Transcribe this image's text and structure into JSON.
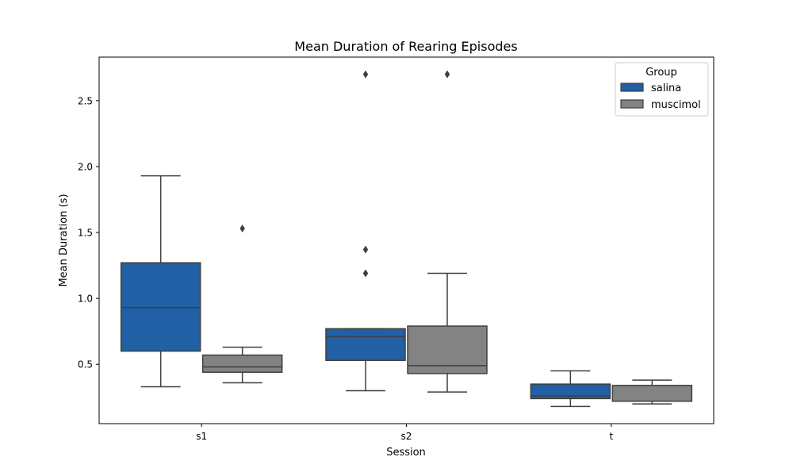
{
  "chart_data": {
    "type": "box",
    "title": "Mean Duration of Rearing Episodes",
    "xlabel": "Session",
    "ylabel": "Mean Duration (s)",
    "categories": [
      "s1",
      "s2",
      "t"
    ],
    "ylim": [
      0.05,
      2.83
    ],
    "yticks": [
      0.5,
      1.0,
      1.5,
      2.0,
      2.5
    ],
    "ytick_labels": [
      "0.5",
      "1.0",
      "1.5",
      "2.0",
      "2.5"
    ],
    "grid": false,
    "legend": {
      "title": "Group",
      "position": "top-right"
    },
    "series": [
      {
        "name": "salina",
        "color": "#2160a4",
        "boxes": [
          {
            "category": "s1",
            "whisker_low": 0.33,
            "q1": 0.6,
            "median": 0.93,
            "q3": 1.27,
            "whisker_high": 1.93,
            "outliers": []
          },
          {
            "category": "s2",
            "whisker_low": 0.3,
            "q1": 0.53,
            "median": 0.71,
            "q3": 0.77,
            "whisker_high": 0.77,
            "outliers": [
              1.19,
              1.37,
              2.7
            ]
          },
          {
            "category": "t",
            "whisker_low": 0.18,
            "q1": 0.24,
            "median": 0.26,
            "q3": 0.35,
            "whisker_high": 0.45,
            "outliers": []
          }
        ]
      },
      {
        "name": "muscimol",
        "color": "#838383",
        "boxes": [
          {
            "category": "s1",
            "whisker_low": 0.36,
            "q1": 0.44,
            "median": 0.48,
            "q3": 0.57,
            "whisker_high": 0.63,
            "outliers": [
              1.53
            ]
          },
          {
            "category": "s2",
            "whisker_low": 0.29,
            "q1": 0.43,
            "median": 0.49,
            "q3": 0.79,
            "whisker_high": 1.19,
            "outliers": [
              2.7
            ]
          },
          {
            "category": "t",
            "whisker_low": 0.2,
            "q1": 0.22,
            "median": 0.22,
            "q3": 0.34,
            "whisker_high": 0.38,
            "outliers": []
          }
        ]
      }
    ]
  }
}
